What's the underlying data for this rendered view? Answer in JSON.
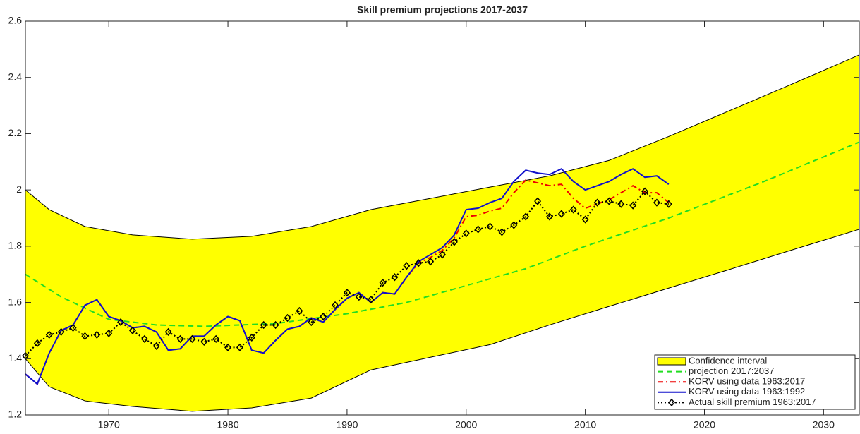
{
  "chart_data": {
    "type": "line",
    "title": "Skill premium projections 2017-2037",
    "xlim": [
      1963,
      2033
    ],
    "ylim": [
      1.2,
      2.6
    ],
    "xticks": [
      1970,
      1980,
      1990,
      2000,
      2010,
      2020,
      2030
    ],
    "yticks": [
      1.2,
      1.4,
      1.6,
      1.8,
      2,
      2.2,
      2.4,
      2.6
    ],
    "legend": "lower right",
    "band": {
      "name": "Confidence interval",
      "color": "#ffff00",
      "x": [
        1963,
        1965,
        1968,
        1972,
        1977,
        1982,
        1987,
        1992,
        1997,
        2002,
        2007,
        2012,
        2017,
        2022,
        2027,
        2033
      ],
      "values": [
        2.0,
        1.93,
        1.87,
        1.84,
        1.825,
        1.835,
        1.87,
        1.93,
        1.97,
        2.01,
        2.05,
        2.105,
        2.19,
        2.28,
        2.37,
        2.48
      ],
      "lower": [
        1.4,
        1.3,
        1.25,
        1.23,
        1.213,
        1.225,
        1.26,
        1.36,
        1.405,
        1.45,
        1.52,
        1.586,
        1.651,
        1.716,
        1.782,
        1.86
      ]
    },
    "series": [
      {
        "name": "projection 2017:2037",
        "color": "#22dd22",
        "style": "dashed",
        "x": [
          1963,
          1966,
          1970,
          1974,
          1978,
          1984,
          1990,
          1995,
          2000,
          2005,
          2010,
          2017,
          2025,
          2033
        ],
        "values": [
          1.7,
          1.62,
          1.54,
          1.52,
          1.515,
          1.525,
          1.56,
          1.6,
          1.66,
          1.72,
          1.8,
          1.9,
          2.03,
          2.17
        ]
      },
      {
        "name": "KORV using data 1963:2017",
        "color": "#ee0000",
        "style": "dashdot",
        "x": [
          1963,
          1964,
          1965,
          1966,
          1967,
          1968,
          1969,
          1970,
          1971,
          1972,
          1973,
          1974,
          1975,
          1976,
          1977,
          1978,
          1979,
          1980,
          1981,
          1982,
          1983,
          1984,
          1985,
          1986,
          1987,
          1988,
          1989,
          1990,
          1991,
          1992,
          1993,
          1994,
          1995,
          1996,
          1997,
          1998,
          1999,
          2000,
          2001,
          2002,
          2003,
          2004,
          2005,
          2006,
          2007,
          2008,
          2009,
          2010,
          2011,
          2012,
          2013,
          2014,
          2015,
          2016,
          2017
        ],
        "values": [
          1.345,
          1.31,
          1.42,
          1.5,
          1.52,
          1.59,
          1.61,
          1.55,
          1.535,
          1.51,
          1.515,
          1.495,
          1.43,
          1.435,
          1.48,
          1.48,
          1.52,
          1.55,
          1.535,
          1.43,
          1.42,
          1.465,
          1.505,
          1.515,
          1.545,
          1.53,
          1.575,
          1.615,
          1.635,
          1.6,
          1.635,
          1.63,
          1.69,
          1.74,
          1.76,
          1.785,
          1.83,
          1.905,
          1.91,
          1.925,
          1.935,
          1.99,
          2.035,
          2.025,
          2.015,
          2.02,
          1.97,
          1.935,
          1.95,
          1.965,
          1.99,
          2.015,
          1.99,
          1.99,
          1.955
        ]
      },
      {
        "name": "KORV using data 1963:1992",
        "color": "#1010cc",
        "style": "solid",
        "x": [
          1963,
          1964,
          1965,
          1966,
          1967,
          1968,
          1969,
          1970,
          1971,
          1972,
          1973,
          1974,
          1975,
          1976,
          1977,
          1978,
          1979,
          1980,
          1981,
          1982,
          1983,
          1984,
          1985,
          1986,
          1987,
          1988,
          1989,
          1990,
          1991,
          1992,
          1993,
          1994,
          1995,
          1996,
          1997,
          1998,
          1999,
          2000,
          2001,
          2002,
          2003,
          2004,
          2005,
          2006,
          2007,
          2008,
          2009,
          2010,
          2011,
          2012,
          2013,
          2014,
          2015,
          2016,
          2017
        ],
        "values": [
          1.345,
          1.31,
          1.42,
          1.5,
          1.52,
          1.59,
          1.61,
          1.55,
          1.535,
          1.51,
          1.515,
          1.495,
          1.43,
          1.435,
          1.48,
          1.48,
          1.52,
          1.55,
          1.535,
          1.43,
          1.42,
          1.465,
          1.505,
          1.515,
          1.545,
          1.53,
          1.575,
          1.615,
          1.635,
          1.6,
          1.635,
          1.63,
          1.69,
          1.745,
          1.77,
          1.795,
          1.84,
          1.93,
          1.935,
          1.955,
          1.97,
          2.03,
          2.07,
          2.06,
          2.055,
          2.075,
          2.03,
          2.0,
          2.015,
          2.03,
          2.055,
          2.075,
          2.045,
          2.05,
          2.02
        ]
      },
      {
        "name": "Actual skill premium 1963:2017",
        "color": "#000000",
        "style": "dotted",
        "marker": "diamond",
        "x": [
          1963,
          1964,
          1965,
          1966,
          1967,
          1968,
          1969,
          1970,
          1971,
          1972,
          1973,
          1974,
          1975,
          1976,
          1977,
          1978,
          1979,
          1980,
          1981,
          1982,
          1983,
          1984,
          1985,
          1986,
          1987,
          1988,
          1989,
          1990,
          1991,
          1992,
          1993,
          1994,
          1995,
          1996,
          1997,
          1998,
          1999,
          2000,
          2001,
          2002,
          2003,
          2004,
          2005,
          2006,
          2007,
          2008,
          2009,
          2010,
          2011,
          2012,
          2013,
          2014,
          2015,
          2016,
          2017
        ],
        "values": [
          1.41,
          1.455,
          1.485,
          1.495,
          1.51,
          1.48,
          1.485,
          1.49,
          1.53,
          1.5,
          1.47,
          1.445,
          1.495,
          1.47,
          1.47,
          1.46,
          1.47,
          1.44,
          1.44,
          1.475,
          1.52,
          1.52,
          1.545,
          1.57,
          1.53,
          1.55,
          1.59,
          1.635,
          1.62,
          1.61,
          1.67,
          1.69,
          1.73,
          1.74,
          1.745,
          1.77,
          1.815,
          1.845,
          1.86,
          1.87,
          1.85,
          1.875,
          1.905,
          1.96,
          1.905,
          1.915,
          1.93,
          1.895,
          1.955,
          1.96,
          1.95,
          1.945,
          1.995,
          1.955,
          1.95
        ]
      }
    ]
  }
}
